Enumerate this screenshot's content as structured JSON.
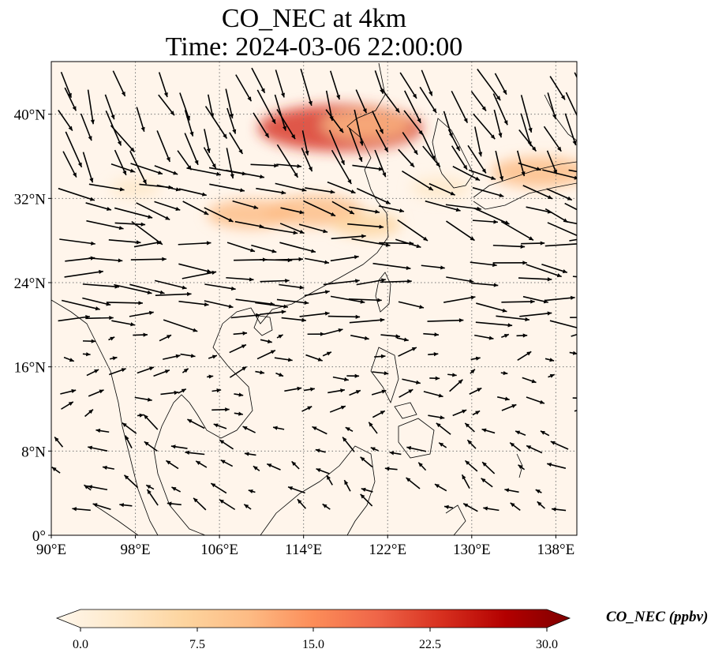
{
  "title": {
    "line1": "CO_NEC at 4km",
    "line2": "Time: 2024-03-06 22:00:00"
  },
  "map": {
    "projection": "PlateCarree",
    "lon_range": [
      90,
      140
    ],
    "lat_range": [
      0,
      45
    ],
    "lon_ticks": [
      {
        "value": 90,
        "label": "90°E"
      },
      {
        "value": 98,
        "label": "98°E"
      },
      {
        "value": 106,
        "label": "106°E"
      },
      {
        "value": 114,
        "label": "114°E"
      },
      {
        "value": 122,
        "label": "122°E"
      },
      {
        "value": 130,
        "label": "130°E"
      },
      {
        "value": 138,
        "label": "138°E"
      }
    ],
    "lat_ticks": [
      {
        "value": 0,
        "label": "0°"
      },
      {
        "value": 8,
        "label": "8°N"
      },
      {
        "value": 16,
        "label": "16°N"
      },
      {
        "value": 24,
        "label": "24°N"
      },
      {
        "value": 32,
        "label": "32°N"
      },
      {
        "value": 40,
        "label": "40°N"
      }
    ],
    "gridlines": "dotted",
    "background_color": "#fff5eb",
    "coastline_color": "#000000",
    "concentration_features": [
      {
        "lon": 109,
        "lat": 30.5,
        "value": 6
      },
      {
        "lon": 115,
        "lat": 30.8,
        "value": 7
      },
      {
        "lon": 120,
        "lat": 29.5,
        "value": 4
      },
      {
        "lon": 117.5,
        "lat": 38.7,
        "value": 14
      },
      {
        "lon": 120,
        "lat": 39.0,
        "value": 6
      },
      {
        "lon": 136.5,
        "lat": 34.5,
        "value": 7
      },
      {
        "lon": 127,
        "lat": 33,
        "value": 3
      },
      {
        "lon": 98,
        "lat": 33,
        "value": 2
      }
    ],
    "wind_field": {
      "description": "westerly to north-westerly flow north of 20°N, weak variable winds in the south",
      "regions": [
        {
          "lat_min": 36,
          "lat_max": 45,
          "u": 0.4,
          "v": -0.9
        },
        {
          "lat_min": 28,
          "lat_max": 36,
          "u": 0.95,
          "v": -0.3
        },
        {
          "lat_min": 20,
          "lat_max": 28,
          "u": 1.0,
          "v": -0.05
        },
        {
          "lat_min": 10,
          "lat_max": 20,
          "u": 0.6,
          "v": 0.1
        },
        {
          "lat_min": 0,
          "lat_max": 10,
          "u": -0.5,
          "v": 0.3
        }
      ]
    }
  },
  "colorbar": {
    "label": "CO_NEC (ppbv)",
    "colormap": "OrRd",
    "extend": "both",
    "ticks": [
      "0.0",
      "7.5",
      "15.0",
      "22.5",
      "30.0"
    ],
    "range": [
      0,
      30
    ],
    "colors": [
      "#fff7ec",
      "#fee8c8",
      "#fdd49e",
      "#fdbb84",
      "#fc8d59",
      "#ef6548",
      "#d7301f",
      "#b30000",
      "#7f0000"
    ]
  }
}
